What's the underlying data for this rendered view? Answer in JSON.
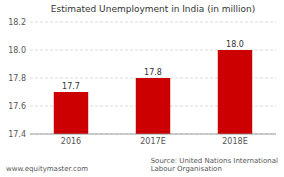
{
  "chart_data": {
    "type": "bar",
    "title": "Estimated Unemployment in India (in million)",
    "categories": [
      "2016",
      "2017E",
      "2018E"
    ],
    "values": [
      17.7,
      17.8,
      18.0
    ],
    "value_labels": [
      "17.7",
      "17.8",
      "18.0"
    ],
    "data_labels": true,
    "color": "#cc0000",
    "ylim": [
      17.4,
      18.2
    ],
    "yticks": [
      17.4,
      17.6,
      17.8,
      {
        "value": 18.0,
        "label": "18.0"
      },
      18.2
    ],
    "grid": true,
    "annotations": [
      "www.equitymaster.com",
      "Source: United Nations International\nLabour Organisation"
    ]
  }
}
